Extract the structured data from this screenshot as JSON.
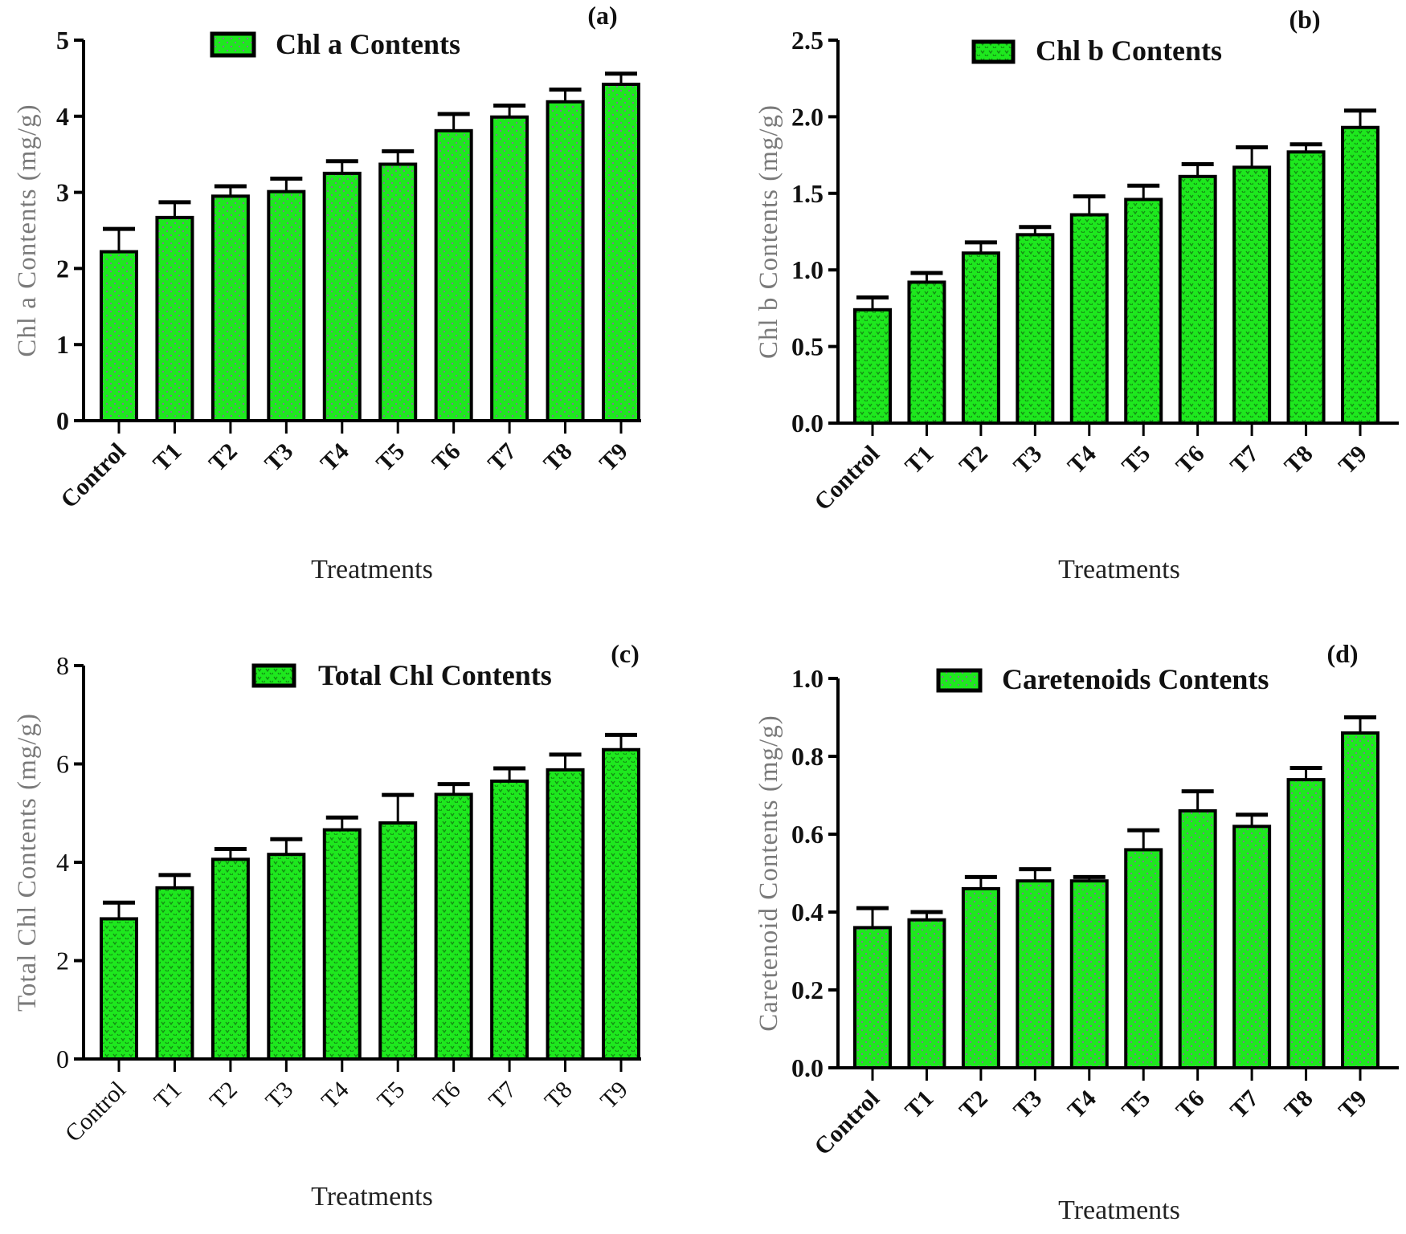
{
  "colors": {
    "bar_fill": "#1ee81e",
    "bar_edge": "#000000",
    "axis_label": "#7a7a7a"
  },
  "chart_data": [
    {
      "type": "bar",
      "panel_label": "(a)",
      "legend": "Chl a Contents",
      "legend_placement": "top-center",
      "xlabel": "Treatments",
      "ylabel": "Chl a Contents (mg/g)",
      "ylim": [
        0,
        5
      ],
      "yticks": [
        "0",
        "1",
        "2",
        "3",
        "4",
        "5"
      ],
      "pattern": "dots",
      "bold_ticks": true,
      "categories": [
        "Control",
        "T1",
        "T2",
        "T3",
        "T4",
        "T5",
        "T6",
        "T7",
        "T8",
        "T9"
      ],
      "values": [
        2.22,
        2.67,
        2.95,
        3.01,
        3.25,
        3.37,
        3.81,
        3.99,
        4.19,
        4.42
      ],
      "error_upper": [
        2.52,
        2.87,
        3.08,
        3.18,
        3.41,
        3.54,
        4.03,
        4.14,
        4.35,
        4.56
      ]
    },
    {
      "type": "bar",
      "panel_label": "(b)",
      "legend": "Chl b Contents",
      "legend_placement": "top-center",
      "xlabel": "Treatments",
      "ylabel": "Chl b Contents (mg/g)",
      "ylim": [
        0,
        2.5
      ],
      "yticks": [
        "0.0",
        "0.5",
        "1.0",
        "1.5",
        "2.0",
        "2.5"
      ],
      "pattern": "chevrons",
      "bold_ticks": true,
      "categories": [
        "Control",
        "T1",
        "T2",
        "T3",
        "T4",
        "T5",
        "T6",
        "T7",
        "T8",
        "T9"
      ],
      "values": [
        0.74,
        0.92,
        1.11,
        1.23,
        1.36,
        1.46,
        1.61,
        1.67,
        1.77,
        1.93
      ],
      "error_upper": [
        0.82,
        0.98,
        1.18,
        1.28,
        1.48,
        1.55,
        1.69,
        1.8,
        1.82,
        2.04
      ]
    },
    {
      "type": "bar",
      "panel_label": "(c)",
      "legend": "Total Chl Contents",
      "legend_placement": "top-center",
      "xlabel": "Treatments",
      "ylabel": "Total Chl Contents (mg/g)",
      "ylim": [
        0,
        8
      ],
      "yticks": [
        "0",
        "2",
        "4",
        "6",
        "8"
      ],
      "pattern": "chevrons",
      "bold_ticks": false,
      "categories": [
        "Control",
        "T1",
        "T2",
        "T3",
        "T4",
        "T5",
        "T6",
        "T7",
        "T8",
        "T9"
      ],
      "values": [
        2.85,
        3.48,
        4.06,
        4.16,
        4.66,
        4.8,
        5.38,
        5.65,
        5.88,
        6.29
      ],
      "error_upper": [
        3.18,
        3.74,
        4.27,
        4.47,
        4.91,
        5.37,
        5.59,
        5.91,
        6.19,
        6.59
      ]
    },
    {
      "type": "bar",
      "panel_label": "(d)",
      "legend": "Caretenoids Contents",
      "legend_placement": "top-center",
      "xlabel": "Treatments",
      "ylabel": "Caretenoid Contents (mg/g)",
      "ylim": [
        0,
        1.0
      ],
      "yticks": [
        "0.0",
        "0.2",
        "0.4",
        "0.6",
        "0.8",
        "1.0"
      ],
      "pattern": "dots",
      "bold_ticks": true,
      "categories": [
        "Control",
        "T1",
        "T2",
        "T3",
        "T4",
        "T5",
        "T6",
        "T7",
        "T8",
        "T9"
      ],
      "values": [
        0.36,
        0.38,
        0.46,
        0.48,
        0.48,
        0.56,
        0.66,
        0.62,
        0.74,
        0.86
      ],
      "error_upper": [
        0.41,
        0.4,
        0.49,
        0.51,
        0.49,
        0.61,
        0.71,
        0.65,
        0.77,
        0.9
      ]
    }
  ]
}
